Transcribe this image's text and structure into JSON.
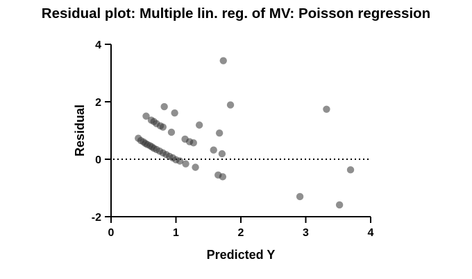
{
  "chart_data": {
    "type": "scatter",
    "title": "Residual plot: Multiple lin. reg. of MV: Poisson regression",
    "xlabel": "Predicted Y",
    "ylabel": "Residual",
    "xlim": [
      0,
      4
    ],
    "ylim": [
      -2,
      4
    ],
    "xticks": [
      "0",
      "1",
      "2",
      "3",
      "4"
    ],
    "yticks": [
      "-2",
      "0",
      "2",
      "4"
    ],
    "reference_line": {
      "y": 0,
      "style": "dotted"
    },
    "grid": false,
    "point_color": "#333333",
    "series": [
      {
        "points": [
          {
            "x": 0.42,
            "y": 0.73
          },
          {
            "x": 0.46,
            "y": 0.65
          },
          {
            "x": 0.5,
            "y": 0.6
          },
          {
            "x": 0.53,
            "y": 0.55
          },
          {
            "x": 0.56,
            "y": 0.51
          },
          {
            "x": 0.6,
            "y": 0.47
          },
          {
            "x": 0.63,
            "y": 0.43
          },
          {
            "x": 0.66,
            "y": 0.38
          },
          {
            "x": 0.7,
            "y": 0.34
          },
          {
            "x": 0.75,
            "y": 0.28
          },
          {
            "x": 0.8,
            "y": 0.22
          },
          {
            "x": 0.85,
            "y": 0.16
          },
          {
            "x": 0.9,
            "y": 0.1
          },
          {
            "x": 0.95,
            "y": 0.05
          },
          {
            "x": 1.0,
            "y": -0.02
          },
          {
            "x": 1.06,
            "y": -0.06
          },
          {
            "x": 1.15,
            "y": -0.16
          },
          {
            "x": 1.3,
            "y": -0.28
          },
          {
            "x": 0.54,
            "y": 1.5
          },
          {
            "x": 0.62,
            "y": 1.36
          },
          {
            "x": 0.66,
            "y": 1.31
          },
          {
            "x": 0.7,
            "y": 1.24
          },
          {
            "x": 0.76,
            "y": 1.16
          },
          {
            "x": 0.8,
            "y": 1.12
          },
          {
            "x": 0.82,
            "y": 1.83
          },
          {
            "x": 0.93,
            "y": 0.94
          },
          {
            "x": 0.98,
            "y": 1.61
          },
          {
            "x": 1.14,
            "y": 0.7
          },
          {
            "x": 1.21,
            "y": 0.61
          },
          {
            "x": 1.27,
            "y": 0.57
          },
          {
            "x": 1.36,
            "y": 1.19
          },
          {
            "x": 1.58,
            "y": 0.32
          },
          {
            "x": 1.65,
            "y": -0.55
          },
          {
            "x": 1.67,
            "y": 0.91
          },
          {
            "x": 1.71,
            "y": 0.19
          },
          {
            "x": 1.72,
            "y": -0.61
          },
          {
            "x": 1.73,
            "y": 3.43
          },
          {
            "x": 1.84,
            "y": 1.89
          },
          {
            "x": 2.91,
            "y": -1.3
          },
          {
            "x": 3.32,
            "y": 1.74
          },
          {
            "x": 3.52,
            "y": -1.59
          },
          {
            "x": 3.69,
            "y": -0.37
          }
        ]
      }
    ]
  }
}
